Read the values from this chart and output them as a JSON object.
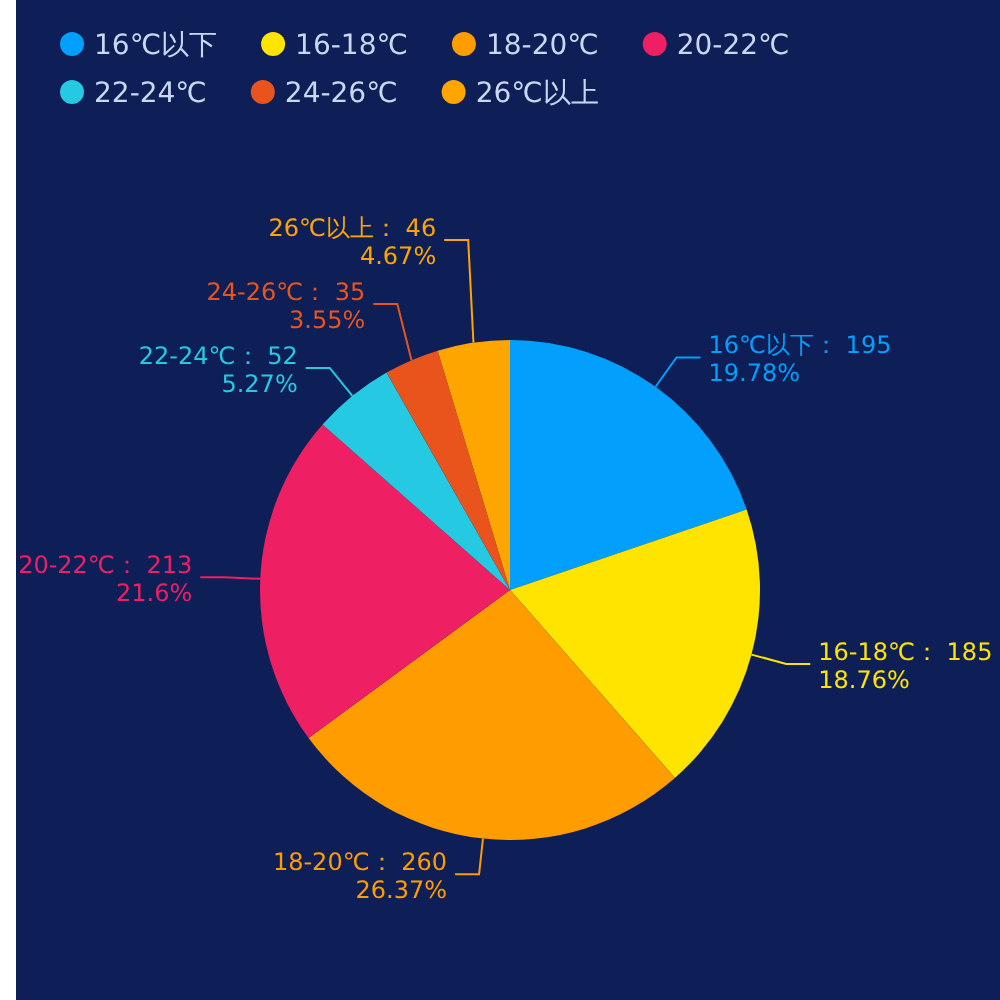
{
  "chart_data": {
    "type": "pie",
    "categories": [
      "16℃以下",
      "16-18℃",
      "18-20℃",
      "20-22℃",
      "22-24℃",
      "24-26℃",
      "26℃以上"
    ],
    "values": [
      19.78,
      18.76,
      26.37,
      21.6,
      5.27,
      3.55,
      4.67
    ],
    "value_labels": [
      "： 195\n19.78%",
      "： 185\n18.76%",
      "： 260\n26.37%",
      "： 213\n21.6%",
      "： 52\n5.27%",
      "： 35\n3.55%",
      "： 46\n4.67%"
    ],
    "colors": [
      "#039ffc",
      "#ffe400",
      "#ff9c00",
      "#ef1f64",
      "#25c9e2",
      "#e9541d",
      "#ffa500"
    ],
    "data_labels": true,
    "legend": "top"
  }
}
